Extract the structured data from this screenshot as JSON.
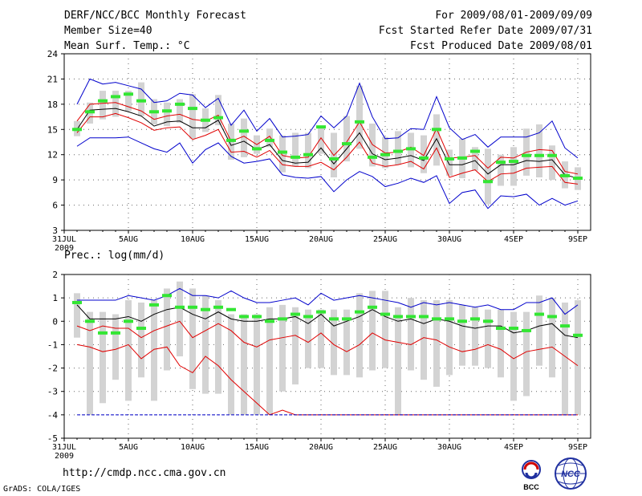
{
  "header": {
    "title": "DERF/NCC/BCC Monthly Forecast",
    "member_size": "Member Size=40",
    "variable": "Mean Surf. Temp.: °C",
    "period": "For 2009/08/01-2009/09/09",
    "started": "Fcst Started Refer Date 2009/07/31",
    "produced": "Fcst Produced Date 2009/08/01"
  },
  "footer": {
    "url": "http://cmdp.ncc.cma.gov.cn",
    "credit": "GrADS: COLA/IGES",
    "logo1_text": "BCC",
    "logo2_text": "NCC"
  },
  "colors": {
    "box": "#d3d3d3",
    "median": "#33e633",
    "mean": "#000000",
    "inner": "#e00000",
    "outer": "#0000cc"
  },
  "chart_data": [
    {
      "type": "box-line",
      "title": "Mean Surf. Temp.: °C",
      "ylim": [
        3,
        24
      ],
      "yticks": [
        3,
        6,
        9,
        12,
        15,
        18,
        21,
        24
      ],
      "xtick_labels": [
        "31JUL",
        "5AUG",
        "10AUG",
        "15AUG",
        "20AUG",
        "25AUG",
        "30AUG",
        "4SEP",
        "9SEP"
      ],
      "xtick_days": [
        0,
        5,
        10,
        15,
        20,
        25,
        30,
        35,
        40
      ],
      "year_label": "2009",
      "days": [
        1,
        2,
        3,
        4,
        5,
        6,
        7,
        8,
        9,
        10,
        11,
        12,
        13,
        14,
        15,
        16,
        17,
        18,
        19,
        20,
        21,
        22,
        23,
        24,
        25,
        26,
        27,
        28,
        29,
        30,
        31,
        32,
        33,
        34,
        35,
        36,
        37,
        38,
        39,
        40
      ],
      "box_low": [
        14.2,
        15.7,
        16.2,
        16.5,
        17.2,
        16.6,
        15.6,
        15.4,
        15.8,
        13.9,
        14.7,
        15.5,
        11.4,
        11.7,
        12.1,
        12.9,
        9.9,
        10.6,
        10.4,
        12.1,
        9.3,
        11.2,
        12.7,
        10.6,
        10.4,
        10.8,
        10.5,
        9.8,
        10.7,
        9.5,
        9.2,
        10.1,
        6.1,
        8.3,
        8.3,
        9.5,
        9.3,
        9.0,
        8.0,
        7.8
      ],
      "box_high": [
        16.0,
        18.2,
        19.6,
        19.6,
        19.6,
        20.6,
        18.6,
        18.2,
        18.6,
        19.2,
        17.5,
        19.1,
        15.7,
        16.3,
        14.3,
        15.1,
        14.3,
        14.6,
        14.6,
        15.3,
        14.6,
        16.6,
        20.2,
        15.7,
        14.1,
        14.8,
        14.6,
        14.3,
        16.8,
        12.6,
        13.9,
        12.9,
        12.7,
        12.0,
        12.9,
        15.1,
        15.6,
        13.1,
        11.2,
        10.5
      ],
      "series": [
        {
          "name": "upper",
          "role": "outer",
          "values": [
            18.0,
            21.0,
            20.4,
            20.6,
            20.2,
            19.8,
            18.2,
            18.4,
            19.3,
            19.1,
            17.6,
            18.7,
            15.5,
            17.3,
            14.8,
            16.3,
            14.1,
            14.2,
            14.4,
            16.6,
            15.2,
            16.6,
            20.5,
            16.5,
            13.9,
            14.0,
            15.1,
            15.0,
            18.9,
            15.2,
            13.8,
            14.4,
            12.9,
            14.1,
            14.1,
            14.1,
            14.6,
            16.0,
            12.8,
            11.6
          ]
        },
        {
          "name": "mean+sd",
          "role": "inner",
          "values": [
            16.0,
            18.0,
            18.1,
            18.2,
            17.7,
            17.2,
            16.2,
            16.6,
            16.8,
            16.2,
            16.0,
            16.7,
            13.6,
            14.2,
            13.2,
            14.2,
            11.9,
            11.6,
            11.7,
            14.0,
            11.9,
            13.5,
            15.9,
            13.2,
            12.2,
            12.3,
            12.9,
            11.9,
            15.1,
            11.6,
            11.7,
            11.9,
            10.4,
            11.7,
            11.6,
            12.3,
            12.6,
            12.5,
            10.0,
            9.7
          ]
        },
        {
          "name": "mean",
          "role": "mean",
          "values": [
            15.0,
            17.3,
            17.4,
            17.5,
            17.1,
            16.6,
            15.4,
            15.9,
            16.0,
            15.2,
            15.2,
            16.1,
            13.1,
            13.6,
            12.6,
            13.2,
            11.3,
            11.0,
            11.1,
            12.8,
            10.9,
            12.7,
            14.6,
            12.1,
            11.4,
            11.6,
            11.9,
            11.3,
            13.9,
            10.8,
            10.8,
            11.3,
            9.7,
            10.8,
            10.8,
            11.3,
            11.2,
            11.4,
            9.6,
            9.2
          ]
        },
        {
          "name": "mean-sd",
          "role": "inner",
          "values": [
            14.6,
            16.5,
            16.5,
            16.9,
            16.4,
            15.8,
            14.9,
            15.2,
            15.3,
            13.8,
            14.3,
            15.0,
            12.3,
            12.4,
            11.7,
            12.5,
            10.8,
            10.6,
            10.6,
            11.1,
            10.2,
            11.7,
            13.5,
            11.0,
            10.6,
            10.8,
            11.2,
            10.3,
            12.8,
            9.3,
            9.8,
            10.2,
            8.8,
            9.7,
            9.8,
            10.4,
            10.5,
            10.6,
            8.7,
            8.5
          ]
        },
        {
          "name": "lower",
          "role": "outer",
          "values": [
            13.0,
            14.0,
            14.0,
            14.0,
            14.1,
            13.4,
            12.7,
            12.3,
            13.4,
            11.0,
            12.6,
            13.4,
            11.8,
            11.0,
            11.2,
            11.5,
            9.6,
            9.3,
            9.2,
            9.4,
            7.6,
            9.0,
            10.0,
            9.4,
            8.2,
            8.6,
            9.2,
            8.7,
            9.5,
            6.2,
            7.5,
            7.8,
            5.6,
            7.1,
            7.0,
            7.3,
            6.0,
            6.8,
            6.0,
            6.5
          ]
        },
        {
          "name": "median",
          "role": "median",
          "values": [
            15.0,
            17.1,
            18.4,
            18.9,
            19.2,
            18.4,
            17.1,
            17.2,
            18.0,
            17.5,
            16.1,
            16.4,
            13.7,
            14.8,
            12.7,
            13.7,
            12.3,
            11.7,
            12.0,
            15.3,
            11.5,
            13.3,
            15.9,
            11.7,
            12.0,
            12.4,
            12.7,
            11.6,
            15.0,
            11.5,
            11.6,
            12.4,
            8.8,
            11.1,
            11.2,
            11.9,
            11.9,
            11.9,
            9.5,
            9.2
          ]
        }
      ]
    },
    {
      "type": "box-line",
      "title": "Prec.: log(mm/d)",
      "ylim": [
        -5,
        2
      ],
      "yticks": [
        -5,
        -4,
        -3,
        -2,
        -1,
        0,
        1,
        2
      ],
      "xtick_labels": [
        "31JUL",
        "5AUG",
        "10AUG",
        "15AUG",
        "20AUG",
        "25AUG",
        "30AUG",
        "4SEP",
        "9SEP"
      ],
      "xtick_days": [
        0,
        5,
        10,
        15,
        20,
        25,
        30,
        35,
        40
      ],
      "year_label": "2009",
      "days": [
        1,
        2,
        3,
        4,
        5,
        6,
        7,
        8,
        9,
        10,
        11,
        12,
        13,
        14,
        15,
        16,
        17,
        18,
        19,
        20,
        21,
        22,
        23,
        24,
        25,
        26,
        27,
        28,
        29,
        30,
        31,
        32,
        33,
        34,
        35,
        36,
        37,
        38,
        39,
        40
      ],
      "box_low": [
        -0.7,
        -4.0,
        -3.5,
        -2.5,
        -3.4,
        -2.4,
        -3.4,
        -2.1,
        -1.5,
        -2.9,
        -3.1,
        -3.1,
        -4.0,
        -4.0,
        -4.0,
        -4.0,
        -3.0,
        -2.7,
        -2.0,
        -2.0,
        -2.3,
        -2.3,
        -2.4,
        -2.1,
        -2.0,
        -4.0,
        -2.1,
        -2.5,
        -2.8,
        -2.3,
        -1.9,
        -1.9,
        -2.0,
        -2.4,
        -3.4,
        -3.2,
        -1.9,
        -2.4,
        -4.0,
        -4.0
      ],
      "box_high": [
        1.2,
        0.4,
        0.4,
        0.3,
        0.9,
        0.8,
        0.9,
        1.4,
        1.7,
        1.4,
        1.1,
        0.9,
        0.3,
        0.3,
        0.3,
        0.6,
        0.7,
        0.6,
        0.5,
        0.5,
        0.5,
        0.5,
        1.2,
        1.3,
        1.3,
        0.6,
        1.0,
        0.9,
        0.9,
        0.9,
        0.7,
        0.6,
        0.5,
        0.5,
        0.4,
        0.4,
        1.1,
        1.0,
        0.8,
        0.9
      ],
      "series": [
        {
          "name": "upper",
          "role": "outer",
          "values": [
            0.9,
            0.9,
            0.9,
            0.9,
            1.1,
            1.0,
            0.9,
            1.1,
            1.4,
            1.1,
            1.1,
            1.0,
            1.3,
            1.0,
            0.8,
            0.8,
            0.9,
            1.0,
            0.7,
            1.2,
            0.9,
            1.0,
            1.1,
            1.0,
            0.9,
            0.8,
            0.6,
            0.8,
            0.7,
            0.8,
            0.7,
            0.6,
            0.7,
            0.5,
            0.5,
            0.8,
            0.8,
            1.0,
            0.3,
            0.7
          ]
        },
        {
          "name": "mean",
          "role": "mean",
          "values": [
            0.7,
            0.1,
            0.1,
            0.1,
            0.2,
            0.0,
            0.3,
            0.5,
            0.6,
            0.3,
            0.1,
            0.4,
            0.1,
            0.0,
            0.0,
            0.1,
            0.1,
            0.2,
            -0.1,
            0.3,
            -0.2,
            0.0,
            0.2,
            0.5,
            0.2,
            0.0,
            0.1,
            -0.1,
            0.1,
            0.0,
            -0.2,
            -0.3,
            -0.2,
            -0.2,
            -0.5,
            -0.4,
            -0.2,
            -0.1,
            -0.6,
            -0.7
          ]
        },
        {
          "name": "lower",
          "role": "inner",
          "values": [
            -1.0,
            -1.1,
            -1.3,
            -1.2,
            -1.0,
            -1.6,
            -1.2,
            -1.1,
            -1.9,
            -2.2,
            -1.5,
            -1.9,
            -2.5,
            -3.0,
            -3.5,
            -4.0,
            -3.8,
            -4.0,
            -4.0,
            -4.0,
            -4.0,
            -4.0,
            -4.0,
            -4.0,
            -4.0,
            -4.0,
            -4.0,
            -4.0,
            -4.0,
            -4.0,
            -4.0,
            -4.0,
            -4.0,
            -4.0,
            -4.0,
            -4.0,
            -4.0,
            -4.0,
            -4.0,
            -4.0
          ]
        },
        {
          "name": "mean-sd",
          "role": "inner",
          "values": [
            -0.2,
            -0.4,
            -0.2,
            -0.3,
            -0.3,
            -0.7,
            -0.4,
            -0.2,
            0.0,
            -0.7,
            -0.4,
            -0.1,
            -0.4,
            -0.9,
            -1.1,
            -0.8,
            -0.7,
            -0.6,
            -0.9,
            -0.5,
            -1.0,
            -1.3,
            -1.0,
            -0.5,
            -0.8,
            -0.9,
            -1.0,
            -0.7,
            -0.8,
            -1.1,
            -1.3,
            -1.2,
            -1.0,
            -1.2,
            -1.6,
            -1.3,
            -1.2,
            -1.1,
            -1.5,
            -1.9
          ]
        },
        {
          "name": "median",
          "role": "median",
          "values": [
            0.8,
            0.0,
            -0.5,
            -0.5,
            0.0,
            -0.3,
            0.7,
            1.1,
            0.6,
            0.6,
            0.5,
            0.6,
            0.5,
            0.2,
            0.2,
            0.0,
            0.1,
            0.3,
            0.2,
            0.4,
            0.1,
            0.1,
            0.4,
            0.6,
            0.3,
            0.2,
            0.2,
            0.2,
            0.1,
            0.1,
            0.0,
            0.1,
            0.0,
            -0.3,
            -0.3,
            -0.4,
            0.3,
            0.2,
            -0.2,
            -0.6
          ]
        },
        {
          "name": "floor",
          "role": "floor",
          "values": [
            -4.0,
            -4.0,
            -4.0,
            -4.0,
            -4.0,
            -4.0,
            -4.0,
            -4.0,
            -4.0,
            -4.0,
            -4.0,
            -4.0,
            -4.0,
            -4.0,
            -4.0,
            -4.0,
            -4.0,
            -4.0,
            -4.0,
            -4.0,
            -4.0,
            -4.0,
            -4.0,
            -4.0,
            -4.0,
            -4.0,
            -4.0,
            -4.0,
            -4.0,
            -4.0,
            -4.0,
            -4.0,
            -4.0,
            -4.0,
            -4.0,
            -4.0,
            -4.0,
            -4.0,
            -4.0,
            -4.0
          ]
        }
      ]
    }
  ]
}
